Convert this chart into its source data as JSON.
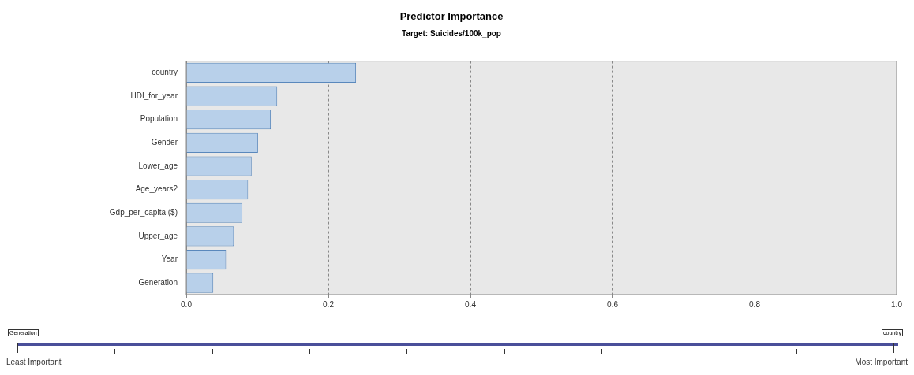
{
  "chart_data": {
    "type": "bar",
    "orientation": "horizontal",
    "title": "Predictor Importance",
    "subtitle": "Target: Suicides/100k_pop",
    "categories": [
      "country",
      "HDI_for_year",
      "Population",
      "Gender",
      "Lower_age",
      "Age_years2",
      "Gdp_per_capita ($)",
      "Upper_age",
      "Year",
      "Generation"
    ],
    "values": [
      0.239,
      0.128,
      0.119,
      0.101,
      0.092,
      0.087,
      0.079,
      0.067,
      0.056,
      0.038
    ],
    "color": "#b8d0ea",
    "xlim": [
      0,
      1
    ],
    "xticks": [
      {
        "value": 0,
        "label": "0.0"
      },
      {
        "value": 0.2,
        "label": "0.2"
      },
      {
        "value": 0.4,
        "label": "0.4"
      },
      {
        "value": 0.6,
        "label": "0.6"
      },
      {
        "value": 0.8,
        "label": "0.8"
      },
      {
        "value": 1,
        "label": "1.0"
      }
    ],
    "grid": "x",
    "legend": false,
    "annotations": [
      "Generation",
      "country",
      "Least Important",
      "Most Important"
    ]
  }
}
